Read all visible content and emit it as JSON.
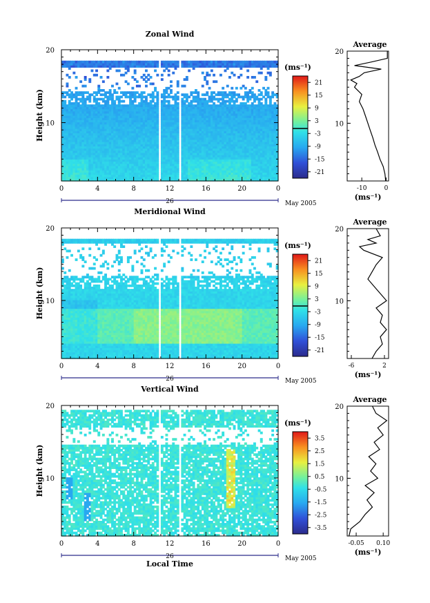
{
  "chart_data": [
    {
      "type": "heatmap",
      "title": "Zonal Wind",
      "ylabel": "Height (km)",
      "xlabel": "",
      "x_ticks": [
        "0",
        "4",
        "8",
        "12",
        "16",
        "20",
        "0"
      ],
      "y_ticks": [
        "20",
        "10"
      ],
      "xlim": [
        0,
        24
      ],
      "ylim": [
        2,
        20
      ],
      "day_label": "26",
      "date_label": "May 2005",
      "colorbar": {
        "unit": "(ms⁻¹)",
        "ticks": [
          "21",
          "15",
          "9",
          "3",
          "-3",
          "-9",
          "-15",
          "-21"
        ],
        "range": [
          -24,
          24
        ]
      },
      "profile": {
        "title": "Average",
        "xlabel": "(ms⁻¹)",
        "x_ticks": [
          "-10",
          "0"
        ],
        "y_ticks": [
          "20",
          "10"
        ],
        "xlim": [
          -16,
          1
        ],
        "points": [
          [
            -0.2,
            2
          ],
          [
            -0.5,
            3
          ],
          [
            -1.2,
            4
          ],
          [
            -2.5,
            5
          ],
          [
            -3.5,
            6
          ],
          [
            -4.6,
            7
          ],
          [
            -5.5,
            8
          ],
          [
            -6.5,
            9
          ],
          [
            -7.5,
            10
          ],
          [
            -8.5,
            11
          ],
          [
            -9.5,
            12
          ],
          [
            -11,
            13
          ],
          [
            -10,
            14
          ],
          [
            -13,
            15
          ],
          [
            -12,
            15.5
          ],
          [
            -14.5,
            16
          ],
          [
            -11,
            16.5
          ],
          [
            -9,
            17
          ],
          [
            -2,
            17.5
          ],
          [
            -13,
            18
          ],
          [
            -6,
            18.5
          ],
          [
            0.5,
            19
          ],
          [
            0.5,
            20
          ]
        ]
      }
    },
    {
      "type": "heatmap",
      "title": "Meridional Wind",
      "ylabel": "Height (km)",
      "xlabel": "",
      "x_ticks": [
        "0",
        "4",
        "8",
        "12",
        "16",
        "20",
        "0"
      ],
      "y_ticks": [
        "20",
        "10"
      ],
      "xlim": [
        0,
        24
      ],
      "ylim": [
        2,
        20
      ],
      "day_label": "26",
      "date_label": "May 2005",
      "colorbar": {
        "unit": "(ms⁻¹)",
        "ticks": [
          "21",
          "15",
          "9",
          "3",
          "-3",
          "-9",
          "-15",
          "-21"
        ],
        "range": [
          -24,
          24
        ]
      },
      "profile": {
        "title": "Average",
        "xlabel": "(ms⁻¹)",
        "x_ticks": [
          "-6",
          "2"
        ],
        "y_ticks": [
          "20",
          "10"
        ],
        "xlim": [
          -7,
          3
        ],
        "points": [
          [
            -1,
            2
          ],
          [
            0,
            3
          ],
          [
            1.5,
            4
          ],
          [
            1,
            5
          ],
          [
            2.5,
            6
          ],
          [
            1,
            7
          ],
          [
            1.5,
            8
          ],
          [
            0,
            9
          ],
          [
            2.5,
            10
          ],
          [
            1,
            11
          ],
          [
            -0.5,
            12
          ],
          [
            -2,
            13
          ],
          [
            -1,
            14
          ],
          [
            0,
            15
          ],
          [
            1.5,
            16
          ],
          [
            -3,
            17
          ],
          [
            -4,
            17.5
          ],
          [
            0,
            18
          ],
          [
            -2,
            18.5
          ],
          [
            1,
            19
          ],
          [
            0,
            20
          ]
        ]
      }
    },
    {
      "type": "heatmap",
      "title": "Vertical Wind",
      "ylabel": "Height (km)",
      "xlabel": "Local Time",
      "x_ticks": [
        "0",
        "4",
        "8",
        "12",
        "16",
        "20",
        "0"
      ],
      "y_ticks": [
        "20",
        "10"
      ],
      "xlim": [
        0,
        24
      ],
      "ylim": [
        2,
        20
      ],
      "day_label": "26",
      "date_label": "May 2005",
      "colorbar": {
        "unit": "(ms⁻¹)",
        "ticks": [
          "3.5",
          "2.5",
          "1.5",
          "0.5",
          "-0.5",
          "-1.5",
          "-2.5",
          "-3.5"
        ],
        "range": [
          -4,
          4
        ]
      },
      "profile": {
        "title": "Average",
        "xlabel": "(ms⁻¹)",
        "x_ticks": [
          "-0.05",
          "0.10"
        ],
        "y_ticks": [
          "20",
          "10"
        ],
        "xlim": [
          -0.1,
          0.13
        ],
        "points": [
          [
            -0.09,
            2
          ],
          [
            -0.08,
            3
          ],
          [
            -0.03,
            4
          ],
          [
            0.0,
            5
          ],
          [
            0.04,
            6
          ],
          [
            0.01,
            7
          ],
          [
            0.05,
            8
          ],
          [
            0.0,
            9
          ],
          [
            0.07,
            10
          ],
          [
            0.03,
            11
          ],
          [
            0.06,
            12
          ],
          [
            0.02,
            13
          ],
          [
            0.08,
            14
          ],
          [
            0.05,
            15
          ],
          [
            0.1,
            16
          ],
          [
            0.07,
            17
          ],
          [
            0.12,
            18
          ],
          [
            0.06,
            19
          ],
          [
            0.04,
            20
          ]
        ]
      }
    }
  ]
}
